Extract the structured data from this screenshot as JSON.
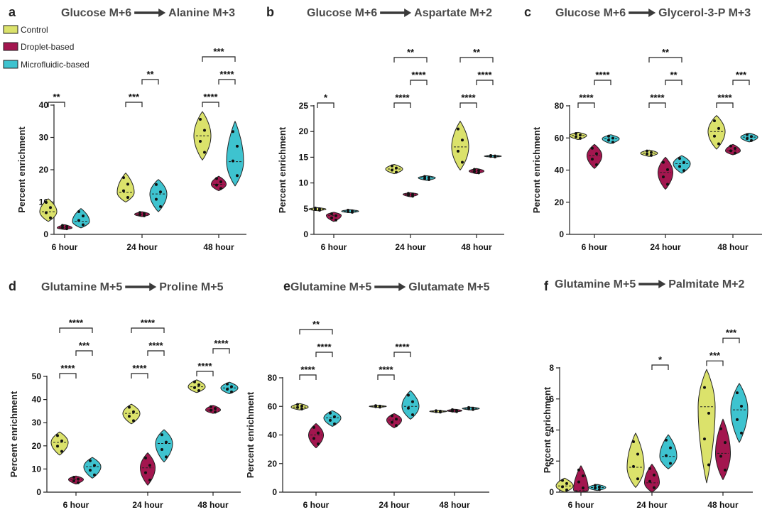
{
  "legend": [
    {
      "name": "Control",
      "color": "#dbe26b"
    },
    {
      "name": "Droplet-based",
      "color": "#a3164f"
    },
    {
      "name": "Microfluidic-based",
      "color": "#3ec3cf"
    }
  ],
  "chart_data": [
    {
      "panel": "a",
      "type": "violin",
      "title_from": "Glucose M+6",
      "title_to": "Alanine M+3",
      "ylabel": "Percent enrichment",
      "ylim": [
        0,
        40
      ],
      "yticks": [
        0,
        10,
        20,
        30,
        40
      ],
      "categories": [
        "6 hour",
        "24 hour",
        "48 hour"
      ],
      "series": [
        {
          "name": "Control",
          "values": [
            7,
            13,
            30.5
          ],
          "min": [
            4,
            10,
            23
          ],
          "max": [
            11,
            19,
            38
          ]
        },
        {
          "name": "Droplet-based",
          "values": [
            2,
            6.2,
            15.5
          ],
          "min": [
            1.5,
            5.5,
            13.5
          ],
          "max": [
            3,
            7,
            18
          ]
        },
        {
          "name": "Microfluidic-based",
          "values": [
            4,
            12.5,
            22.5
          ],
          "min": [
            2,
            7,
            15
          ],
          "max": [
            8,
            17,
            35
          ]
        }
      ],
      "significance": [
        {
          "group": 0,
          "pair": [
            0,
            1
          ],
          "label": "**"
        },
        {
          "group": 1,
          "pair": [
            0,
            1
          ],
          "label": "***"
        },
        {
          "group": 1,
          "pair": [
            1,
            2
          ],
          "label": "**"
        },
        {
          "group": 2,
          "pair": [
            0,
            1
          ],
          "label": "****"
        },
        {
          "group": 2,
          "pair": [
            1,
            2
          ],
          "label": "****"
        },
        {
          "group": 2,
          "pair": [
            0,
            2
          ],
          "label": "***"
        }
      ]
    },
    {
      "panel": "b",
      "type": "violin",
      "title_from": "Glucose M+6",
      "title_to": "Aspartate M+2",
      "ylabel": "Percent enrichment",
      "ylim": [
        0,
        25
      ],
      "yticks": [
        0,
        5,
        10,
        15,
        20,
        25
      ],
      "categories": [
        "6 hour",
        "24 hour",
        "48 hour"
      ],
      "series": [
        {
          "name": "Control",
          "values": [
            4.9,
            12.7,
            17
          ],
          "min": [
            4.6,
            11.8,
            12.5
          ],
          "max": [
            5.2,
            13.6,
            22
          ]
        },
        {
          "name": "Droplet-based",
          "values": [
            3.7,
            7.8,
            12.3
          ],
          "min": [
            2.5,
            7.3,
            11.8
          ],
          "max": [
            4.3,
            8.1,
            12.8
          ]
        },
        {
          "name": "Microfluidic-based",
          "values": [
            4.5,
            11,
            15.2
          ],
          "min": [
            4.2,
            10.5,
            15
          ],
          "max": [
            4.8,
            11.4,
            15.4
          ]
        }
      ],
      "significance": [
        {
          "group": 0,
          "pair": [
            0,
            1
          ],
          "label": "*"
        },
        {
          "group": 1,
          "pair": [
            0,
            1
          ],
          "label": "****"
        },
        {
          "group": 1,
          "pair": [
            1,
            2
          ],
          "label": "****"
        },
        {
          "group": 1,
          "pair": [
            0,
            2
          ],
          "label": "**"
        },
        {
          "group": 2,
          "pair": [
            0,
            1
          ],
          "label": "****"
        },
        {
          "group": 2,
          "pair": [
            1,
            2
          ],
          "label": "****"
        },
        {
          "group": 2,
          "pair": [
            0,
            2
          ],
          "label": "**"
        }
      ]
    },
    {
      "panel": "c",
      "type": "violin",
      "title_from": "Glucose M+6",
      "title_to": "Glycerol-3-P M+3",
      "ylabel": "Percent enrichment",
      "ylim": [
        0,
        80
      ],
      "yticks": [
        0,
        20,
        40,
        60,
        80
      ],
      "categories": [
        "6 hour",
        "24 hour",
        "48 hour"
      ],
      "series": [
        {
          "name": "Control",
          "values": [
            61.5,
            50.5,
            64
          ],
          "min": [
            59,
            48.5,
            53
          ],
          "max": [
            63.5,
            52.5,
            74
          ]
        },
        {
          "name": "Droplet-based",
          "values": [
            49,
            38.5,
            52
          ],
          "min": [
            41,
            28,
            49.5
          ],
          "max": [
            56,
            48,
            56
          ]
        },
        {
          "name": "Microfluidic-based",
          "values": [
            59.5,
            44,
            60.5
          ],
          "min": [
            56.5,
            38,
            57.5
          ],
          "max": [
            62,
            49,
            63
          ]
        }
      ],
      "significance": [
        {
          "group": 0,
          "pair": [
            0,
            1
          ],
          "label": "****"
        },
        {
          "group": 0,
          "pair": [
            1,
            2
          ],
          "label": "****"
        },
        {
          "group": 1,
          "pair": [
            0,
            1
          ],
          "label": "****"
        },
        {
          "group": 1,
          "pair": [
            1,
            2
          ],
          "label": "**"
        },
        {
          "group": 1,
          "pair": [
            0,
            2
          ],
          "label": "**"
        },
        {
          "group": 2,
          "pair": [
            0,
            1
          ],
          "label": "****"
        },
        {
          "group": 2,
          "pair": [
            1,
            2
          ],
          "label": "***"
        }
      ]
    },
    {
      "panel": "d",
      "type": "violin",
      "title_from": "Glutamine M+5",
      "title_to": "Proline M+5",
      "ylabel": "Percent enrichment",
      "ylim": [
        0,
        50
      ],
      "yticks": [
        0,
        10,
        20,
        30,
        40,
        50
      ],
      "categories": [
        "6 hour",
        "24 hour",
        "48 hour"
      ],
      "series": [
        {
          "name": "Control",
          "values": [
            21.5,
            34,
            45.5
          ],
          "min": [
            16,
            29.5,
            43
          ],
          "max": [
            26,
            38,
            48.5
          ]
        },
        {
          "name": "Droplet-based",
          "values": [
            5.5,
            10.5,
            35.5
          ],
          "min": [
            3.5,
            3,
            34
          ],
          "max": [
            7,
            17,
            37.5
          ]
        },
        {
          "name": "Microfluidic-based",
          "values": [
            11,
            21,
            45
          ],
          "min": [
            6,
            13,
            42.5
          ],
          "max": [
            15,
            27,
            47.5
          ]
        }
      ],
      "significance": [
        {
          "group": 0,
          "pair": [
            0,
            1
          ],
          "label": "****"
        },
        {
          "group": 0,
          "pair": [
            1,
            2
          ],
          "label": "***"
        },
        {
          "group": 0,
          "pair": [
            0,
            2
          ],
          "label": "****"
        },
        {
          "group": 1,
          "pair": [
            0,
            1
          ],
          "label": "****"
        },
        {
          "group": 1,
          "pair": [
            1,
            2
          ],
          "label": "****"
        },
        {
          "group": 1,
          "pair": [
            0,
            2
          ],
          "label": "****"
        },
        {
          "group": 2,
          "pair": [
            0,
            1
          ],
          "label": "****"
        },
        {
          "group": 2,
          "pair": [
            1,
            2
          ],
          "label": "****"
        }
      ]
    },
    {
      "panel": "e",
      "type": "violin",
      "title_from": "Glutamine M+5",
      "title_to": "Glutamate M+5",
      "ylabel": "Percent enrichment",
      "ylim": [
        0,
        80
      ],
      "yticks": [
        0,
        20,
        40,
        60,
        80
      ],
      "categories": [
        "6 hour",
        "24 hour",
        "48 hour"
      ],
      "series": [
        {
          "name": "Control",
          "values": [
            59.5,
            60,
            56.5
          ],
          "min": [
            57.5,
            59.3,
            55.8
          ],
          "max": [
            62,
            60.7,
            57.2
          ]
        },
        {
          "name": "Droplet-based",
          "values": [
            40,
            50.5,
            57
          ],
          "min": [
            31,
            45,
            56
          ],
          "max": [
            48,
            55,
            58
          ]
        },
        {
          "name": "Microfluidic-based",
          "values": [
            52,
            60,
            58.5
          ],
          "min": [
            46,
            51,
            57.5
          ],
          "max": [
            57,
            71,
            59.5
          ]
        }
      ],
      "significance": [
        {
          "group": 0,
          "pair": [
            0,
            1
          ],
          "label": "****"
        },
        {
          "group": 0,
          "pair": [
            1,
            2
          ],
          "label": "****"
        },
        {
          "group": 0,
          "pair": [
            0,
            2
          ],
          "label": "**"
        },
        {
          "group": 1,
          "pair": [
            0,
            1
          ],
          "label": "****"
        },
        {
          "group": 1,
          "pair": [
            1,
            2
          ],
          "label": "****"
        }
      ]
    },
    {
      "panel": "f",
      "type": "violin",
      "title_from": "Glutamine M+5",
      "title_to": "Palmitate M+2",
      "ylabel": "Percent enrichment",
      "ylim": [
        0,
        8
      ],
      "yticks": [
        0,
        2,
        4,
        6,
        8
      ],
      "categories": [
        "6 hour",
        "24 hour",
        "48 hour"
      ],
      "series": [
        {
          "name": "Control",
          "values": [
            0.4,
            1.6,
            5.5
          ],
          "min": [
            0,
            0.3,
            0.6
          ],
          "max": [
            0.9,
            3.8,
            7.9
          ]
        },
        {
          "name": "Droplet-based",
          "values": [
            0.1,
            0.6,
            2.5
          ],
          "min": [
            0,
            0,
            0.8
          ],
          "max": [
            1.7,
            1.8,
            4.7
          ]
        },
        {
          "name": "Microfluidic-based",
          "values": [
            0.3,
            2.3,
            5.3
          ],
          "min": [
            0.1,
            1.5,
            3.2
          ],
          "max": [
            0.5,
            3.7,
            7
          ]
        }
      ],
      "significance": [
        {
          "group": 1,
          "pair": [
            1,
            2
          ],
          "label": "*"
        },
        {
          "group": 2,
          "pair": [
            0,
            1
          ],
          "label": "***"
        },
        {
          "group": 2,
          "pair": [
            1,
            2
          ],
          "label": "***"
        }
      ]
    }
  ]
}
